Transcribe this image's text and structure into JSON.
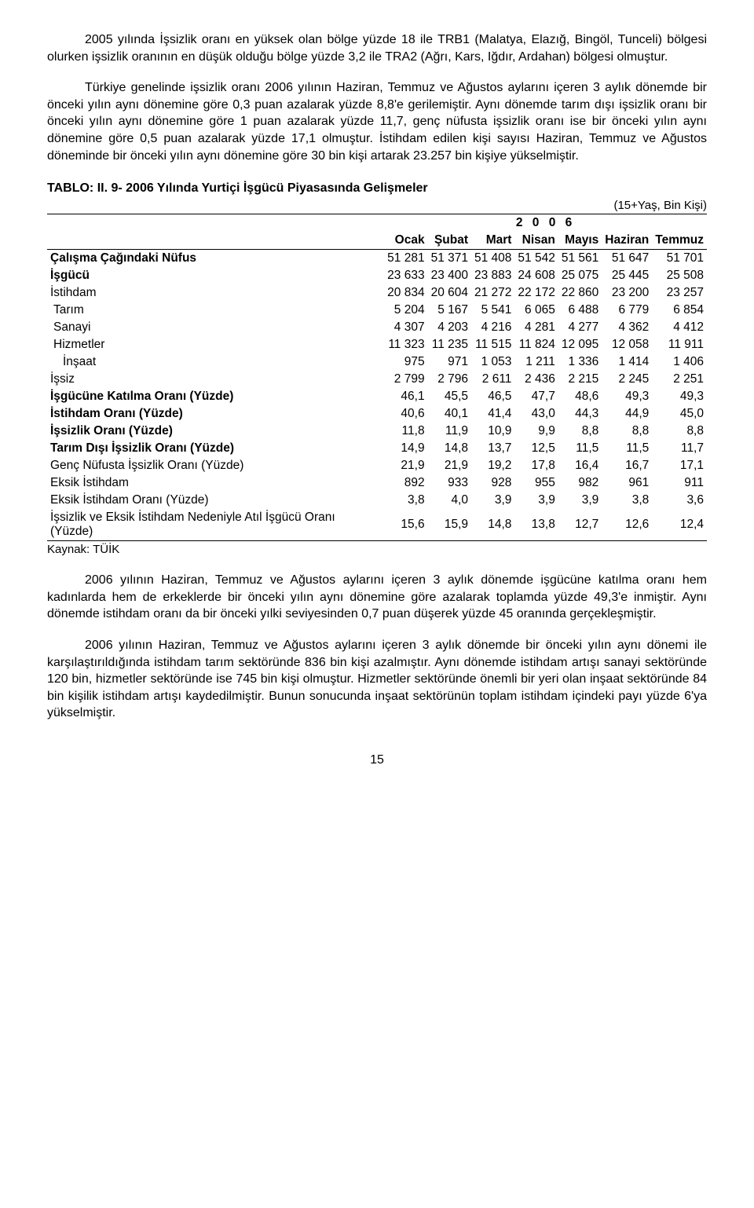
{
  "paragraphs": {
    "p1": "2005 yılında İşsizlik oranı en yüksek olan bölge yüzde 18 ile TRB1 (Malatya, Elazığ, Bingöl, Tunceli) bölgesi olurken işsizlik oranının en düşük olduğu bölge yüzde 3,2 ile TRA2 (Ağrı, Kars, Iğdır, Ardahan) bölgesi olmuştur.",
    "p2": "Türkiye genelinde işsizlik oranı 2006 yılının Haziran, Temmuz ve Ağustos aylarını içeren 3 aylık dönemde bir önceki yılın aynı dönemine göre 0,3 puan azalarak yüzde 8,8'e gerilemiştir. Aynı dönemde tarım dışı işsizlik oranı bir önceki yılın aynı dönemine göre 1 puan azalarak yüzde 11,7, genç nüfusta işsizlik oranı ise bir önceki yılın aynı dönemine göre 0,5 puan azalarak yüzde 17,1 olmuştur. İstihdam edilen kişi sayısı Haziran, Temmuz ve Ağustos döneminde bir önceki yılın aynı dönemine göre 30 bin kişi artarak 23.257 bin kişiye yükselmiştir.",
    "p3": "2006 yılının Haziran, Temmuz ve Ağustos aylarını içeren 3 aylık dönemde işgücüne katılma oranı hem kadınlarda hem de erkeklerde bir önceki yılın aynı dönemine göre azalarak toplamda yüzde 49,3'e inmiştir. Aynı dönemde istihdam oranı da bir önceki yılki seviyesinden 0,7 puan düşerek yüzde 45 oranında gerçekleşmiştir.",
    "p4": "2006 yılının Haziran, Temmuz ve Ağustos aylarını içeren 3 aylık dönemde  bir önceki yılın aynı dönemi ile karşılaştırıldığında istihdam tarım sektöründe 836 bin kişi azalmıştır.  Aynı dönemde istihdam artışı sanayi sektöründe 120 bin, hizmetler sektöründe ise 745 bin kişi olmuştur. Hizmetler sektöründe önemli bir yeri olan inşaat sektöründe 84 bin kişilik istihdam artışı kaydedilmiştir. Bunun sonucunda inşaat sektörünün toplam istihdam içindeki payı yüzde 6'ya yükselmiştir."
  },
  "table_title": "TABLO: II. 9- 2006 Yılında Yurtiçi İşgücü Piyasasında Gelişmeler",
  "unit_note": "(15+Yaş, Bin Kişi)",
  "year_header": "2 0 0 6",
  "months": [
    "Ocak",
    "Şubat",
    "Mart",
    "Nisan",
    "Mayıs",
    "Haziran",
    "Temmuz"
  ],
  "rows": [
    {
      "label": "Çalışma Çağındaki Nüfus",
      "bold": true,
      "indent": 0,
      "v": [
        "51 281",
        "51 371",
        "51 408",
        "51 542",
        "51 561",
        "51 647",
        "51 701"
      ]
    },
    {
      "label": "İşgücü",
      "bold": true,
      "indent": 0,
      "v": [
        "23 633",
        "23 400",
        "23 883",
        "24 608",
        "25 075",
        "25 445",
        "25 508"
      ]
    },
    {
      "label": "İstihdam",
      "bold": false,
      "indent": 0,
      "v": [
        "20 834",
        "20 604",
        "21 272",
        "22 172",
        "22 860",
        "23 200",
        "23 257"
      ]
    },
    {
      "label": "Tarım",
      "bold": false,
      "indent": 1,
      "v": [
        "5 204",
        "5 167",
        "5 541",
        "6 065",
        "6 488",
        "6 779",
        "6 854"
      ]
    },
    {
      "label": "Sanayi",
      "bold": false,
      "indent": 1,
      "v": [
        "4 307",
        "4 203",
        "4 216",
        "4 281",
        "4 277",
        "4 362",
        "4 412"
      ]
    },
    {
      "label": "Hizmetler",
      "bold": false,
      "indent": 1,
      "v": [
        "11 323",
        "11 235",
        "11 515",
        "11 824",
        "12 095",
        "12 058",
        "11 911"
      ]
    },
    {
      "label": "İnşaat",
      "bold": false,
      "indent": 2,
      "v": [
        "975",
        "971",
        "1 053",
        "1 211",
        "1 336",
        "1 414",
        "1 406"
      ]
    },
    {
      "label": "İşsiz",
      "bold": false,
      "indent": 0,
      "v": [
        "2 799",
        "2 796",
        "2 611",
        "2 436",
        "2 215",
        "2 245",
        "2 251"
      ]
    },
    {
      "label": "İşgücüne Katılma Oranı (Yüzde)",
      "bold": true,
      "indent": 0,
      "v": [
        "46,1",
        "45,5",
        "46,5",
        "47,7",
        "48,6",
        "49,3",
        "49,3"
      ]
    },
    {
      "label": "İstihdam Oranı (Yüzde)",
      "bold": true,
      "indent": 0,
      "v": [
        "40,6",
        "40,1",
        "41,4",
        "43,0",
        "44,3",
        "44,9",
        "45,0"
      ]
    },
    {
      "label": "İşsizlik Oranı (Yüzde)",
      "bold": true,
      "indent": 0,
      "v": [
        "11,8",
        "11,9",
        "10,9",
        "9,9",
        "8,8",
        "8,8",
        "8,8"
      ]
    },
    {
      "label": "Tarım Dışı İşsizlik Oranı (Yüzde)",
      "bold": true,
      "indent": 0,
      "v": [
        "14,9",
        "14,8",
        "13,7",
        "12,5",
        "11,5",
        "11,5",
        "11,7"
      ]
    },
    {
      "label": "Genç Nüfusta İşsizlik Oranı (Yüzde)",
      "bold": false,
      "indent": 0,
      "v": [
        "21,9",
        "21,9",
        "19,2",
        "17,8",
        "16,4",
        "16,7",
        "17,1"
      ]
    },
    {
      "label": "Eksik İstihdam",
      "bold": false,
      "indent": 0,
      "v": [
        "892",
        "933",
        "928",
        "955",
        "982",
        "961",
        "911"
      ]
    },
    {
      "label": "Eksik İstihdam Oranı (Yüzde)",
      "bold": false,
      "indent": 0,
      "v": [
        "3,8",
        "4,0",
        "3,9",
        "3,9",
        "3,9",
        "3,8",
        "3,6"
      ]
    },
    {
      "label": "İşsizlik ve Eksik İstihdam Nedeniyle Atıl İşgücü Oranı (Yüzde)",
      "bold": false,
      "indent": 0,
      "v": [
        "15,6",
        "15,9",
        "14,8",
        "13,8",
        "12,7",
        "12,6",
        "12,4"
      ]
    }
  ],
  "source": "Kaynak: TÜİK",
  "page_number": "15"
}
